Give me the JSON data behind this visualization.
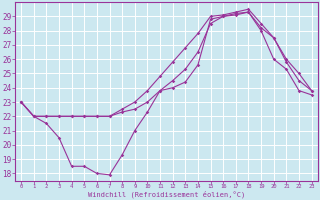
{
  "xlabel": "Windchill (Refroidissement éolien,°C)",
  "xlim": [
    -0.5,
    23.5
  ],
  "ylim": [
    17.5,
    30.0
  ],
  "yticks": [
    18,
    19,
    20,
    21,
    22,
    23,
    24,
    25,
    26,
    27,
    28,
    29
  ],
  "xticks": [
    0,
    1,
    2,
    3,
    4,
    5,
    6,
    7,
    8,
    9,
    10,
    11,
    12,
    13,
    14,
    15,
    16,
    17,
    18,
    19,
    20,
    21,
    22,
    23
  ],
  "line_color": "#993399",
  "bg_color": "#cce8f0",
  "grid_color": "#ffffff",
  "line1_x": [
    0,
    1,
    2,
    3,
    4,
    5,
    6,
    7,
    8,
    9,
    10,
    11,
    12,
    13,
    14,
    15,
    16,
    17,
    18,
    19,
    20,
    21,
    22,
    23
  ],
  "line1_y": [
    23,
    22,
    21.5,
    20.5,
    18.5,
    18.5,
    18.0,
    17.9,
    19.3,
    21.0,
    22.3,
    23.8,
    24.0,
    24.4,
    25.6,
    28.8,
    29.0,
    29.2,
    29.3,
    28.0,
    26.0,
    25.3,
    23.8,
    23.5
  ],
  "line2_x": [
    0,
    1,
    2,
    3,
    4,
    5,
    6,
    7,
    8,
    9,
    10,
    11,
    12,
    13,
    14,
    15,
    16,
    17,
    18,
    19,
    20,
    21,
    22,
    23
  ],
  "line2_y": [
    23,
    22,
    22.0,
    22.0,
    22.0,
    22.0,
    22.0,
    22.0,
    22.3,
    22.5,
    23.0,
    23.8,
    24.5,
    25.3,
    26.5,
    28.5,
    29.0,
    29.1,
    29.3,
    28.2,
    27.5,
    26.0,
    25.0,
    23.8
  ],
  "line3_x": [
    0,
    1,
    2,
    3,
    4,
    5,
    6,
    7,
    8,
    9,
    10,
    11,
    12,
    13,
    14,
    15,
    16,
    17,
    18,
    19,
    20,
    21,
    22,
    23
  ],
  "line3_y": [
    23,
    22,
    22.0,
    22.0,
    22.0,
    22.0,
    22.0,
    22.0,
    22.5,
    23.0,
    23.8,
    24.8,
    25.8,
    26.8,
    27.8,
    29.0,
    29.1,
    29.3,
    29.5,
    28.5,
    27.5,
    25.8,
    24.5,
    23.8
  ]
}
